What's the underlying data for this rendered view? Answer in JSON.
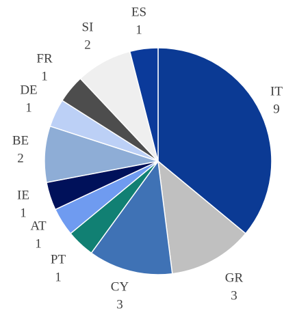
{
  "chart_data": {
    "type": "pie",
    "categories": [
      "IT",
      "GR",
      "CY",
      "PT",
      "AT",
      "IE",
      "BE",
      "DE",
      "FR",
      "SI",
      "ES"
    ],
    "values": [
      9,
      3,
      3,
      1,
      1,
      1,
      2,
      1,
      1,
      2,
      1
    ],
    "colors": [
      "#0b3a94",
      "#c0c0c0",
      "#3f72b5",
      "#118073",
      "#6f9bf0",
      "#00115a",
      "#8eadd6",
      "#bcd0f6",
      "#4d4d4d",
      "#efefef",
      "#0b3a9a"
    ]
  }
}
